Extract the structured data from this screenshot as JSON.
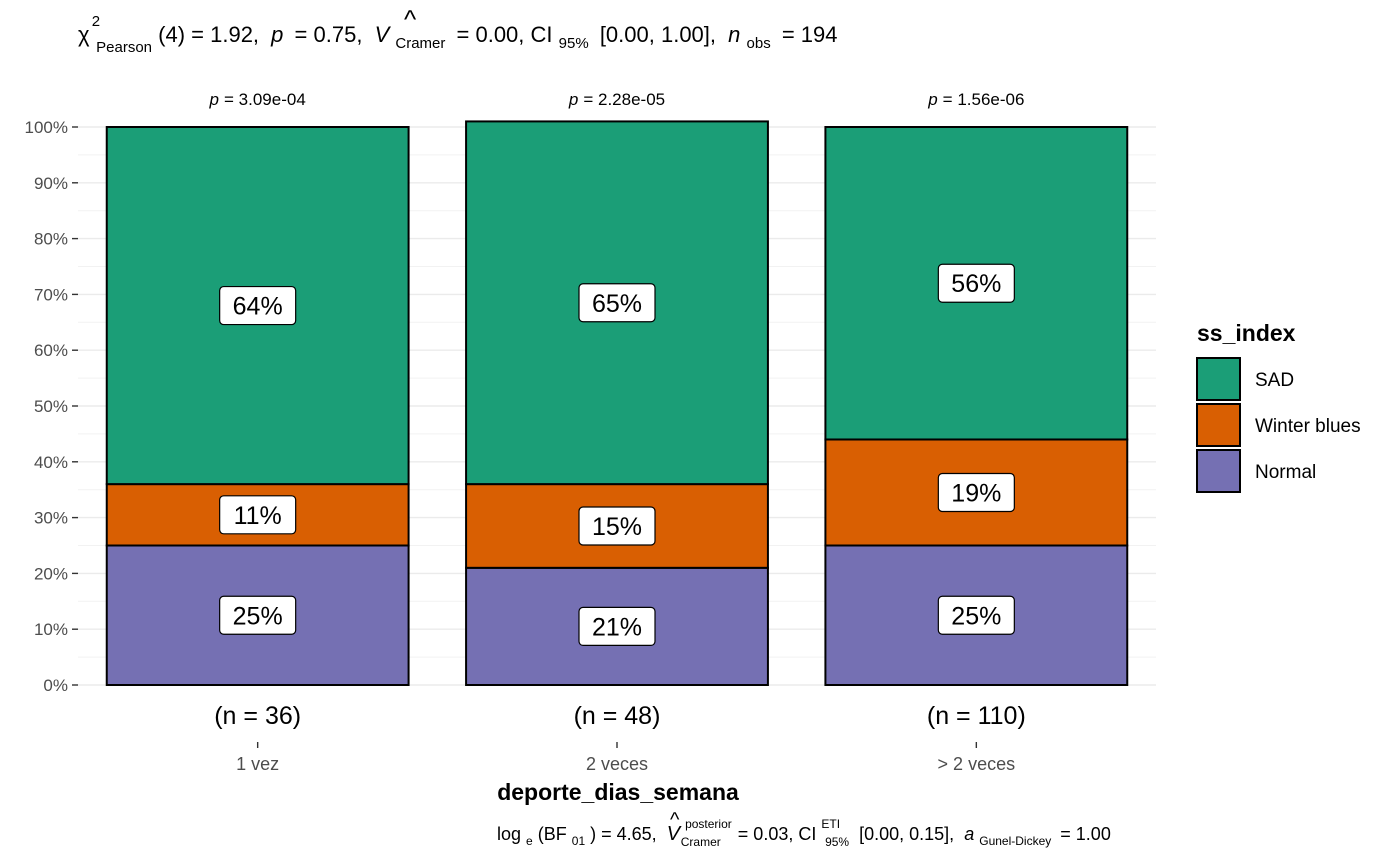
{
  "chart_data": {
    "type": "bar",
    "stacked": true,
    "normalized": true,
    "subtitle": {
      "chi_symbol": "χ",
      "chi_sup": "2",
      "chi_sub": "Pearson",
      "df": "(4) = 1.92,",
      "p_label": "p",
      "p_value": "= 0.75,",
      "v_label": "V",
      "v_hat": "^",
      "v_sub": "Cramer",
      "v_value": "= 0.00, CI",
      "ci_sub": "95%",
      "ci_value": "[0.00, 1.00],",
      "n_label": "n",
      "n_sub": "obs",
      "n_value": "= 194"
    },
    "caption": {
      "log_label": "log",
      "log_sub": "e",
      "bf_open": "(BF",
      "bf_sub": "01",
      "bf_value": ") = 4.65,",
      "v_label": "V",
      "v_hat": "^",
      "v_sup": "posterior",
      "v_sub": "Cramer",
      "v_value": "= 0.03, CI",
      "ci_sup": "ETI",
      "ci_sub": "95%",
      "ci_value": "[0.00, 0.15],",
      "a_label": "a",
      "a_sub": "Gunel-Dickey",
      "a_value": "= 1.00"
    },
    "xlabel": "deporte_dias_semana",
    "ylabel": "",
    "ylim": [
      0,
      100
    ],
    "yticks": [
      "0%",
      "10%",
      "20%",
      "30%",
      "40%",
      "50%",
      "60%",
      "70%",
      "80%",
      "90%",
      "100%"
    ],
    "categories": [
      "1 vez",
      "2 veces",
      "> 2 veces"
    ],
    "n_labels": [
      "(n = 36)",
      "(n = 48)",
      "(n = 110)"
    ],
    "p_label_symbol": "p",
    "p_values": [
      "= 3.09e-04",
      "= 2.28e-05",
      "= 1.56e-06"
    ],
    "legend": {
      "title": "ss_index",
      "position": "right"
    },
    "grid": true,
    "series": [
      {
        "name": "Normal",
        "color": "#7570B3",
        "values": [
          25,
          21,
          25
        ],
        "labels": [
          "25%",
          "21%",
          "25%"
        ]
      },
      {
        "name": "Winter blues",
        "color": "#D95F02",
        "values": [
          11,
          15,
          19
        ],
        "labels": [
          "11%",
          "15%",
          "19%"
        ]
      },
      {
        "name": "SAD",
        "color": "#1B9E77",
        "values": [
          64,
          65,
          56
        ],
        "labels": [
          "64%",
          "65%",
          "56%"
        ]
      }
    ]
  }
}
